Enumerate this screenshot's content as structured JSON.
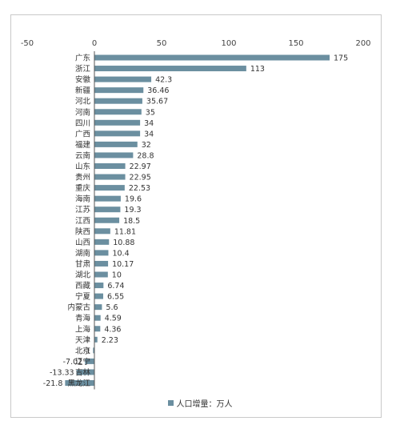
{
  "chart_data": {
    "type": "bar",
    "orientation": "horizontal",
    "title": "",
    "xlim": [
      -50,
      200
    ],
    "xticks": [
      -50,
      0,
      50,
      100,
      150,
      200
    ],
    "grid": false,
    "legend_position": "bottom",
    "bar_color": "#6b8fa0",
    "series": [
      {
        "name": "人口增量：万人",
        "values": [
          175,
          113,
          42.3,
          36.46,
          35.67,
          35,
          34,
          34,
          32,
          28.8,
          22.97,
          22.95,
          22.53,
          19.6,
          19.3,
          18.5,
          11.81,
          10.88,
          10.4,
          10.17,
          10,
          6.74,
          6.55,
          5.6,
          4.59,
          4.36,
          2.23,
          -1,
          -7.02,
          -13.33,
          -21.8
        ]
      }
    ],
    "categories": [
      "广东",
      "浙江",
      "安徽",
      "新疆",
      "河北",
      "河南",
      "四川",
      "广西",
      "福建",
      "云南",
      "山东",
      "贵州",
      "重庆",
      "海南",
      "江苏",
      "江西",
      "陕西",
      "山西",
      "湖南",
      "甘肃",
      "湖北",
      "西藏",
      "宁夏",
      "内蒙古",
      "青海",
      "上海",
      "天津",
      "北京",
      "辽宁",
      "吉林",
      "黑龙江"
    ],
    "value_labels": [
      "175",
      "113",
      "42.3",
      "36.46",
      "35.67",
      "35",
      "34",
      "34",
      "32",
      "28.8",
      "22.97",
      "22.95",
      "22.53",
      "19.6",
      "19.3",
      "18.5",
      "11.81",
      "10.88",
      "10.4",
      "10.17",
      "10",
      "6.74",
      "6.55",
      "5.6",
      "4.59",
      "4.36",
      "2.23",
      "-1",
      "-7.02",
      "-13.33",
      "-21.8"
    ]
  }
}
